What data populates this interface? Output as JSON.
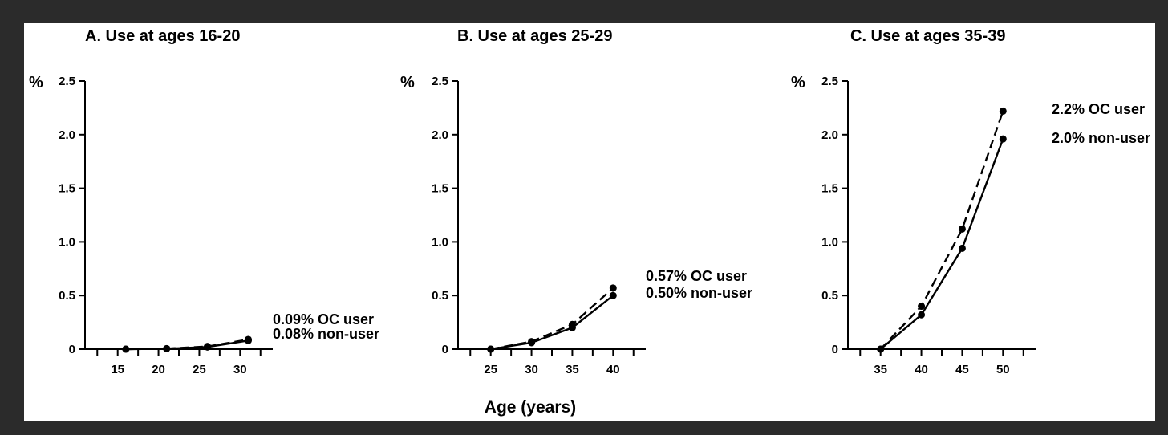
{
  "chart_data": [
    {
      "type": "line",
      "title": "A. Use at ages 16-20",
      "ylabel_unit": "%",
      "ylim": [
        0,
        2.5
      ],
      "y_ticks": [
        "0",
        "0.5",
        "1.0",
        "1.5",
        "2.0",
        "2.5"
      ],
      "x_ticks": [
        "15",
        "20",
        "25",
        "30"
      ],
      "xlim": [
        11,
        34
      ],
      "series": [
        {
          "style": "dashed",
          "x": [
            16,
            21,
            26,
            31
          ],
          "y": [
            0.0,
            0.005,
            0.025,
            0.09
          ]
        },
        {
          "style": "solid",
          "x": [
            16,
            21,
            26,
            31
          ],
          "y": [
            0.0,
            0.004,
            0.02,
            0.08
          ]
        }
      ],
      "annotations": [
        "0.09% OC user",
        "0.08% non-user"
      ]
    },
    {
      "type": "line",
      "title": "B. Use at ages 25-29",
      "ylabel_unit": "%",
      "ylim": [
        0,
        2.5
      ],
      "y_ticks": [
        "0",
        "0.5",
        "1.0",
        "1.5",
        "2.0",
        "2.5"
      ],
      "x_ticks": [
        "25",
        "30",
        "35",
        "40"
      ],
      "xlim": [
        21,
        44
      ],
      "series": [
        {
          "style": "dashed",
          "x": [
            25,
            30,
            35,
            40
          ],
          "y": [
            0.0,
            0.07,
            0.23,
            0.57
          ]
        },
        {
          "style": "solid",
          "x": [
            25,
            30,
            35,
            40
          ],
          "y": [
            0.0,
            0.06,
            0.2,
            0.5
          ]
        }
      ],
      "annotations": [
        "0.57% OC user",
        "0.50% non-user"
      ]
    },
    {
      "type": "line",
      "title": "C. Use at ages 35-39",
      "ylabel_unit": "%",
      "ylim": [
        0,
        2.5
      ],
      "y_ticks": [
        "0",
        "0.5",
        "1.0",
        "1.5",
        "2.0",
        "2.5"
      ],
      "x_ticks": [
        "35",
        "40",
        "45",
        "50"
      ],
      "xlim": [
        31,
        54
      ],
      "series": [
        {
          "style": "dashed",
          "x": [
            35,
            40,
            45,
            50
          ],
          "y": [
            0.0,
            0.4,
            1.12,
            2.22
          ]
        },
        {
          "style": "solid",
          "x": [
            35,
            40,
            45,
            50
          ],
          "y": [
            0.0,
            0.32,
            0.94,
            1.96
          ]
        }
      ],
      "annotations": [
        "2.2% OC user",
        "2.0% non-user"
      ]
    }
  ],
  "shared_xlabel": "Age (years)",
  "colors": {
    "background": "#2b2b2b",
    "canvas": "#ffffff",
    "ink": "#000000"
  }
}
